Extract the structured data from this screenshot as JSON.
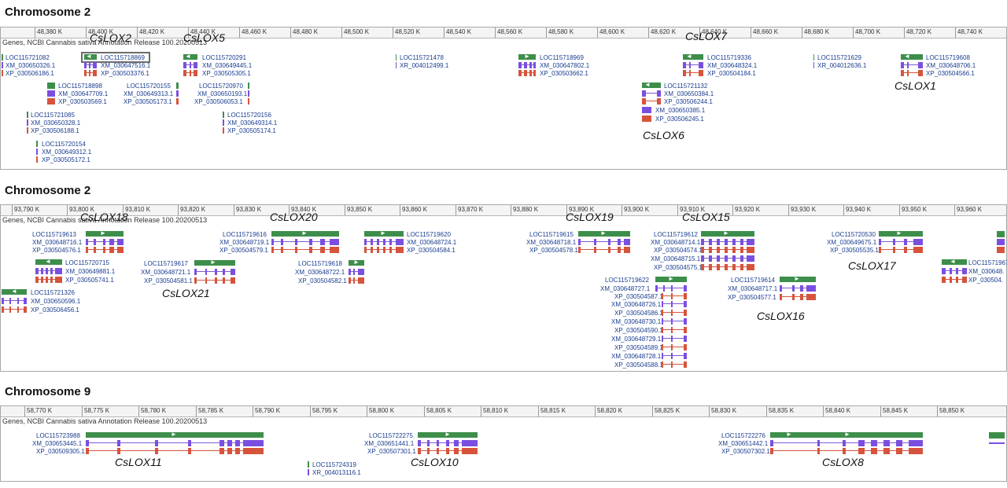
{
  "panels": [
    {
      "title": "Chromosome 2",
      "track_label": "Genes, NCBI Cannabis sativa Annotation Release 100.20200513",
      "ticks": [
        "48,380 K",
        "48,400 K",
        "48,420 K",
        "48,440 K",
        "48,460 K",
        "48,480 K",
        "48,500 K",
        "48,520 K",
        "48,540 K",
        "48,560 K",
        "48,580 K",
        "48,600 K",
        "48,620 K",
        "48,640 K",
        "48,660 K",
        "48,680 K",
        "48,700 K",
        "48,720 K",
        "48,740 K"
      ],
      "labels": [
        "LOC115721082",
        "XM_030650326.1",
        "XP_030506186.1",
        "LOC115718898",
        "XM_030647709.1",
        "XP_030503569.1",
        "LOC115721085",
        "XM_030650328.1",
        "XP_030506188.1",
        "LOC115720154",
        "XM_030649312.1",
        "XP_030505172.1",
        "LOC115718869",
        "XM_030647516.1",
        "XP_030503376.1",
        "LOC115720155",
        "XM_030649313.1",
        "XP_030505173.1",
        "LOC115720291",
        "XM_030649445.1",
        "XP_030505305.1",
        "LOC115720970",
        "XM_030650193.1",
        "XP_030506053.1",
        "LOC115720156",
        "XM_030649314.1",
        "XP_030505174.1",
        "LOC115721478",
        "XR_004012499.1",
        "LOC115718969",
        "XM_030647802.1",
        "XP_030503662.1",
        "LOC115721132",
        "XM_030650384.1",
        "XP_030506244.1",
        "XM_030650385.1",
        "XP_030506245.1",
        "LOC115719336",
        "XM_030648324.1",
        "XP_030504184.1",
        "LOC115721629",
        "XR_004012636.1",
        "LOC115719608",
        "XM_030648706.1",
        "XP_030504566.1"
      ],
      "lox": [
        "CsLOX2",
        "CsLOX5",
        "CsLOX7",
        "CsLOX6",
        "CsLOX1"
      ]
    },
    {
      "title": "Chromosome 2",
      "track_label": "Genes, NCBI Cannabis sativa Annotation Release 100.20200513",
      "ticks": [
        "93,790 K",
        "93,800 K",
        "93,810 K",
        "93,820 K",
        "93,830 K",
        "93,840 K",
        "93,850 K",
        "93,860 K",
        "93,870 K",
        "93,880 K",
        "93,890 K",
        "93,900 K",
        "93,910 K",
        "93,920 K",
        "93,930 K",
        "93,940 K",
        "93,950 K",
        "93,960 K"
      ],
      "labels": [
        "LOC115719613",
        "XM_030648716.1",
        "XP_030504576.1",
        "LOC115720715",
        "XM_030649881.1",
        "XP_030505741.1",
        "LOC115721326",
        "XM_030650596.1",
        "XP_030506456.1",
        "LOC115719617",
        "XM_030648721.1",
        "XP_030504581.1",
        "LOC115719616",
        "XM_030648719.1",
        "XP_030504579.1",
        "LOC115719618",
        "XM_030648722.1",
        "XP_030504582.1",
        "LOC115719620",
        "XM_030648724.1",
        "XP_030504584.1",
        "LOC115719615",
        "XM_030648718.1",
        "XP_030504578.1",
        "LOC115719622",
        "XM_030648727.1",
        "XP_030504587.1",
        "XM_030648726.1",
        "XP_030504586.1",
        "XM_030648730.1",
        "XP_030504590.1",
        "XM_030648729.1",
        "XP_030504589.1",
        "XM_030648728.1",
        "XP_030504588.1",
        "LOC115719612",
        "XM_030648714.1",
        "XP_030504574.1",
        "XM_030648715.1",
        "XP_030504575.1",
        "LOC115719614",
        "XM_030648717.1",
        "XP_030504577.1",
        "LOC115720530",
        "XM_030649675.1",
        "XP_030505535.1",
        "LOC115719674",
        "XM_030648.",
        "XP_030504."
      ],
      "lox": [
        "CsLOX18",
        "CsLOX20",
        "CsLOX19",
        "CsLOX15",
        "CsLOX21",
        "CsLOX17",
        "CsLOX16"
      ]
    },
    {
      "title": "Chromosome 9",
      "track_label": "Genes, NCBI Cannabis sativa Annotation Release 100.20200513",
      "ticks": [
        "58,770 K",
        "58,775 K",
        "58,780 K",
        "58,785 K",
        "58,790 K",
        "58,795 K",
        "58,800 K",
        "58,805 K",
        "58,810 K",
        "58,815 K",
        "58,820 K",
        "58,825 K",
        "58,830 K",
        "58,835 K",
        "58,840 K",
        "58,845 K",
        "58,850 K"
      ],
      "labels": [
        "LOC115723988",
        "XM_030653445.1",
        "XP_030509305.1",
        "LOC115722275",
        "XM_030651441.1",
        "XP_030507301.1",
        "LOC115724319",
        "XR_004013116.1",
        "LOC115722276",
        "XM_030651442.1",
        "XP_030507302.1"
      ],
      "lox": [
        "CsLOX11",
        "CsLOX10",
        "CsLOX8"
      ]
    }
  ],
  "colors": {
    "gene": "#3e8e4b",
    "mrna": "#7a4fe0",
    "protein": "#d6543c",
    "link": "#1a3d8f"
  }
}
